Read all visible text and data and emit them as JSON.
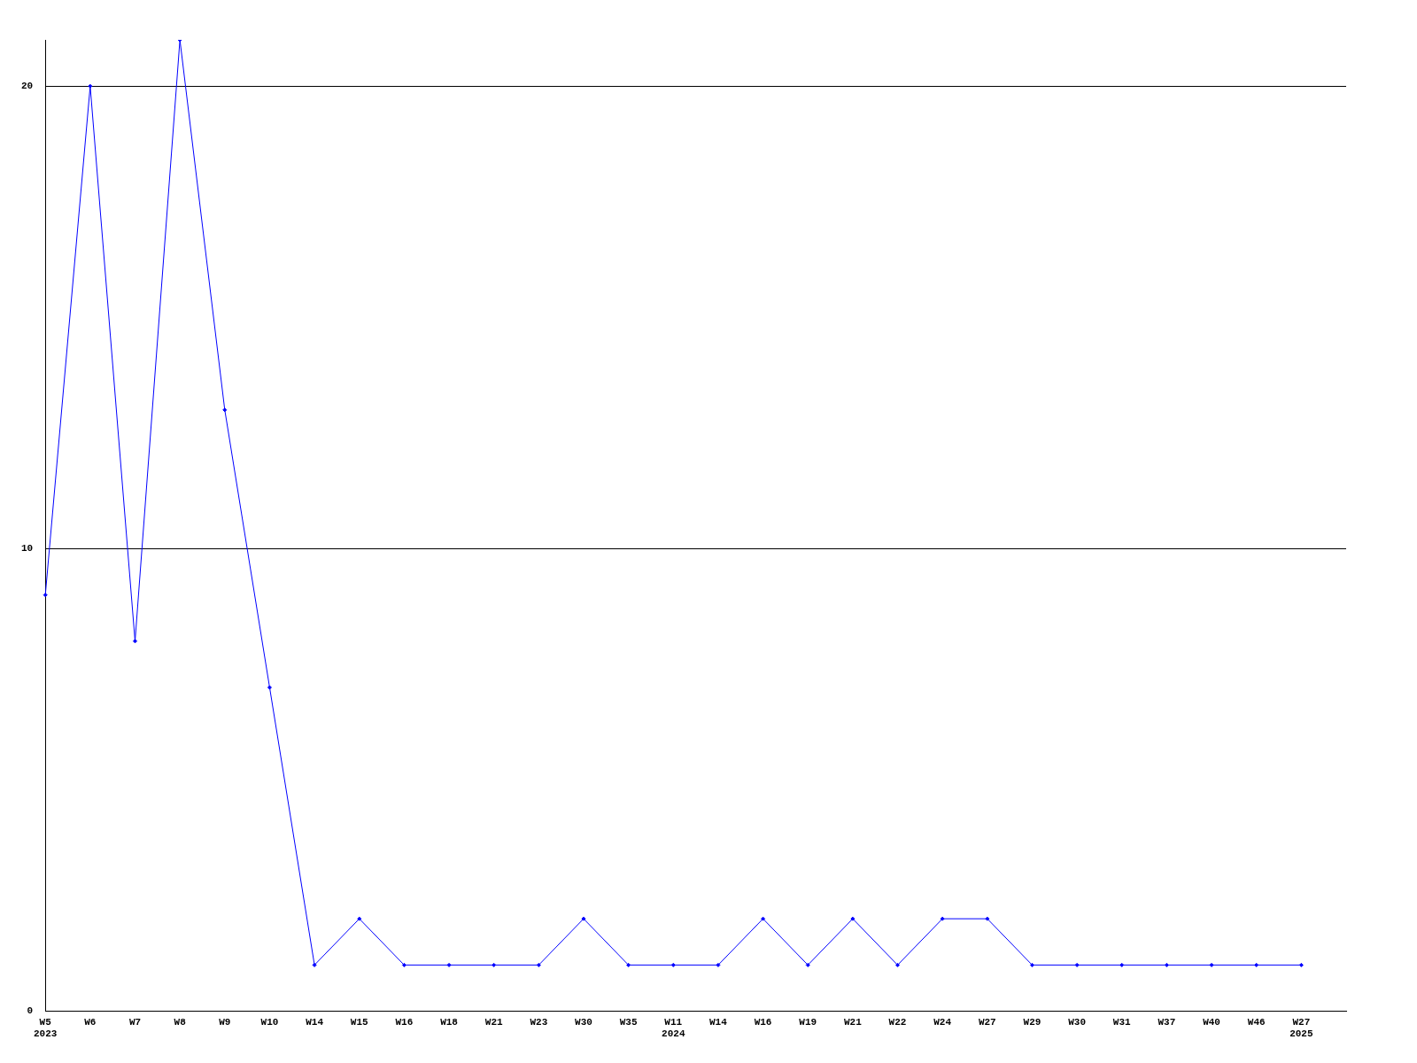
{
  "chart_data": {
    "type": "line",
    "categories": [
      "W5\n2023",
      "W6",
      "W7",
      "W8",
      "W9",
      "W10",
      "W14",
      "W15",
      "W16",
      "W18",
      "W21",
      "W23",
      "W30",
      "W35",
      "W11\n2024",
      "W14",
      "W16",
      "W19",
      "W21",
      "W22",
      "W24",
      "W27",
      "W29",
      "W30",
      "W31",
      "W37",
      "W40",
      "W46",
      "W27\n2025",
      null
    ],
    "series": [
      {
        "color": "#0000ff",
        "values": [
          9,
          20,
          8,
          21,
          13,
          7,
          1,
          2,
          1,
          1,
          1,
          1,
          2,
          1,
          1,
          1,
          2,
          1,
          2,
          1,
          2,
          2,
          1,
          1,
          1,
          1,
          1,
          1,
          1,
          null
        ]
      }
    ],
    "ylim": [
      0,
      21
    ],
    "yticks": [
      0,
      10,
      20
    ],
    "grid": "y",
    "legend": false,
    "marker": "diamond",
    "line_style": "solid"
  }
}
